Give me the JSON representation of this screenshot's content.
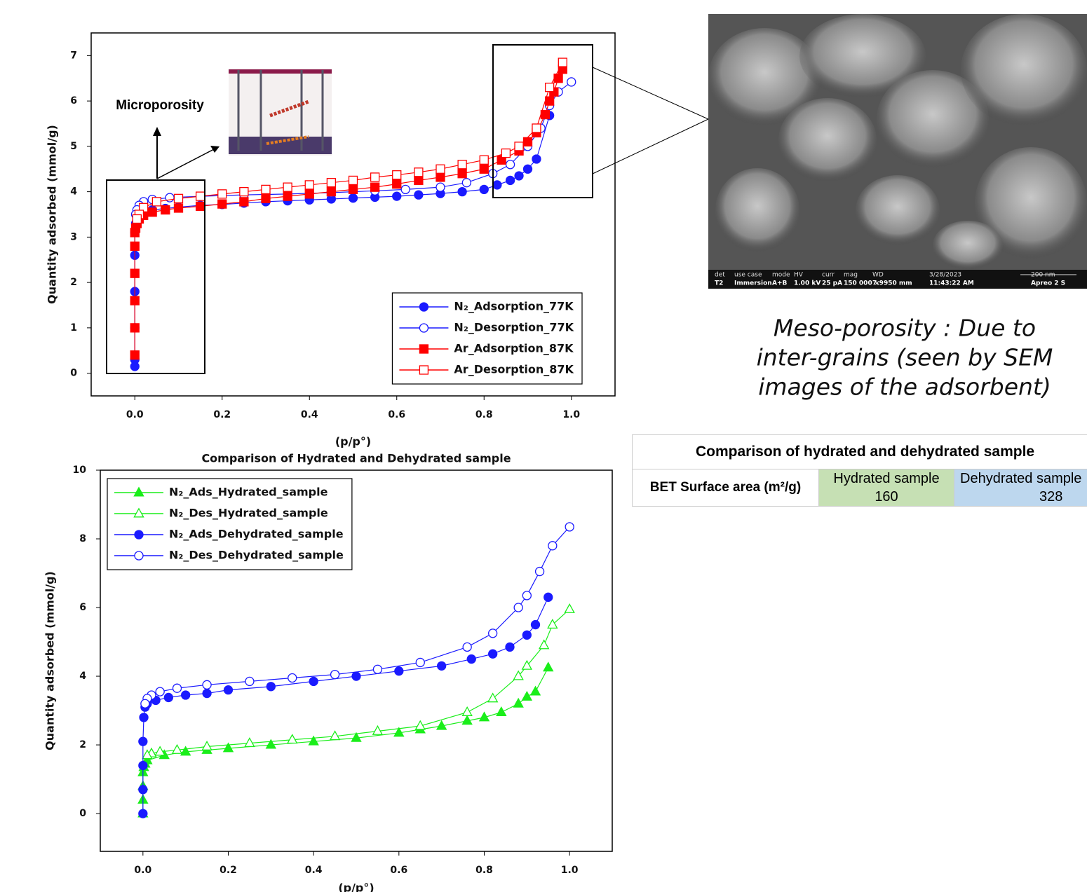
{
  "chart_data": [
    {
      "type": "line",
      "annotation": "Microporosity",
      "xlabel": "(p/p°)",
      "ylabel": "Quantity adsorbed (mmol/g)",
      "xlim": [
        -0.1,
        1.1
      ],
      "ylim": [
        -0.5,
        7.5
      ],
      "xticks": [
        {
          "value": 0,
          "label": "0.0"
        },
        0.2,
        0.4,
        0.6,
        0.8,
        {
          "value": 1,
          "label": "1.0"
        }
      ],
      "yticks": [
        0,
        1,
        2,
        3,
        4,
        5,
        6,
        7
      ],
      "legend": "lower right",
      "series": [
        {
          "name": "N₂_Adsorption_77K",
          "color": "#1a1aff",
          "marker": "circle",
          "filled": true,
          "x": [
            0,
            0,
            0,
            0,
            0,
            0,
            0.002,
            0.005,
            0.01,
            0.02,
            0.04,
            0.07,
            0.1,
            0.15,
            0.2,
            0.25,
            0.3,
            0.35,
            0.4,
            0.45,
            0.5,
            0.55,
            0.6,
            0.65,
            0.7,
            0.75,
            0.8,
            0.83,
            0.86,
            0.88,
            0.9,
            0.92,
            0.95
          ],
          "values": [
            0.15,
            0.3,
            1,
            1.8,
            2.6,
            3.1,
            3.3,
            3.4,
            3.5,
            3.55,
            3.6,
            3.63,
            3.66,
            3.7,
            3.72,
            3.75,
            3.78,
            3.8,
            3.82,
            3.84,
            3.86,
            3.88,
            3.9,
            3.93,
            3.96,
            4.0,
            4.05,
            4.15,
            4.25,
            4.35,
            4.5,
            4.72,
            5.68
          ]
        },
        {
          "name": "N₂_Desorption_77K",
          "color": "#1a1aff",
          "marker": "circle",
          "filled": false,
          "x": [
            1.0,
            0.97,
            0.95,
            0.93,
            0.9,
            0.86,
            0.82,
            0.76,
            0.7,
            0.62,
            0.55,
            0.45,
            0.35,
            0.25,
            0.15,
            0.08,
            0.04,
            0.02,
            0.01,
            0.005,
            0.002
          ],
          "values": [
            6.42,
            6.2,
            5.9,
            5.4,
            5.0,
            4.6,
            4.4,
            4.2,
            4.1,
            4.05,
            4.02,
            3.98,
            3.95,
            3.93,
            3.9,
            3.87,
            3.83,
            3.78,
            3.7,
            3.6,
            3.5
          ]
        },
        {
          "name": "Ar_Adsorption_87K",
          "color": "#ff0000",
          "marker": "square",
          "filled": true,
          "x": [
            0,
            0,
            0,
            0,
            0,
            0,
            0.002,
            0.005,
            0.01,
            0.02,
            0.04,
            0.07,
            0.1,
            0.15,
            0.2,
            0.25,
            0.3,
            0.35,
            0.4,
            0.45,
            0.5,
            0.55,
            0.6,
            0.65,
            0.7,
            0.75,
            0.8,
            0.84,
            0.88,
            0.9,
            0.92,
            0.94,
            0.95,
            0.96,
            0.97,
            0.98
          ],
          "values": [
            0.4,
            1,
            1.6,
            2.2,
            2.8,
            3.1,
            3.2,
            3.3,
            3.4,
            3.48,
            3.55,
            3.6,
            3.64,
            3.68,
            3.73,
            3.78,
            3.85,
            3.9,
            3.95,
            4.0,
            4.05,
            4.1,
            4.17,
            4.25,
            4.32,
            4.4,
            4.5,
            4.7,
            4.9,
            5.1,
            5.3,
            5.7,
            6.0,
            6.2,
            6.5,
            6.7
          ]
        },
        {
          "name": "Ar_Desorption_87K",
          "color": "#ff0000",
          "marker": "square",
          "filled": false,
          "x": [
            0.98,
            0.95,
            0.92,
            0.88,
            0.85,
            0.8,
            0.75,
            0.7,
            0.65,
            0.6,
            0.55,
            0.5,
            0.45,
            0.4,
            0.35,
            0.3,
            0.25,
            0.2,
            0.15,
            0.1,
            0.05,
            0.02,
            0.01,
            0.005
          ],
          "values": [
            6.85,
            6.3,
            5.4,
            5.0,
            4.85,
            4.7,
            4.6,
            4.5,
            4.43,
            4.37,
            4.32,
            4.25,
            4.2,
            4.15,
            4.1,
            4.05,
            4.0,
            3.95,
            3.9,
            3.85,
            3.78,
            3.65,
            3.5,
            3.4
          ]
        }
      ]
    },
    {
      "type": "line",
      "title": "Comparison of Hydrated and Dehydrated sample",
      "xlabel": "(p/p°)",
      "ylabel": "Quantity adsorbed (mmol/g)",
      "xlim": [
        -0.1,
        1.1
      ],
      "ylim": [
        -1.1,
        10
      ],
      "xticks": [
        {
          "value": 0,
          "label": "0.0"
        },
        0.2,
        0.4,
        0.6,
        0.8,
        {
          "value": 1,
          "label": "1.0"
        }
      ],
      "yticks": [
        0,
        2,
        4,
        6,
        8,
        10
      ],
      "legend": "upper left",
      "series": [
        {
          "name": "N₂_Ads_Hydrated_sample",
          "color": "#1aee1a",
          "marker": "triangle",
          "filled": true,
          "x": [
            0,
            0,
            0,
            0,
            0.002,
            0.005,
            0.01,
            0.05,
            0.1,
            0.15,
            0.2,
            0.3,
            0.4,
            0.5,
            0.6,
            0.65,
            0.7,
            0.76,
            0.8,
            0.84,
            0.88,
            0.9,
            0.92,
            0.95
          ],
          "values": [
            0,
            0.4,
            0.8,
            1.2,
            1.35,
            1.45,
            1.55,
            1.7,
            1.8,
            1.85,
            1.9,
            2.0,
            2.1,
            2.2,
            2.35,
            2.45,
            2.55,
            2.7,
            2.8,
            2.95,
            3.2,
            3.4,
            3.55,
            4.25
          ]
        },
        {
          "name": "N₂_Des_Hydrated_sample",
          "color": "#1aee1a",
          "marker": "triangle",
          "filled": false,
          "x": [
            1.0,
            0.96,
            0.94,
            0.9,
            0.88,
            0.82,
            0.76,
            0.65,
            0.55,
            0.45,
            0.35,
            0.25,
            0.15,
            0.08,
            0.04,
            0.02,
            0.01
          ],
          "values": [
            5.95,
            5.5,
            4.9,
            4.3,
            4.0,
            3.35,
            2.95,
            2.55,
            2.4,
            2.25,
            2.15,
            2.05,
            1.95,
            1.85,
            1.8,
            1.75,
            1.7
          ]
        },
        {
          "name": "N₂_Ads_Dehydrated_sample",
          "color": "#1a1aff",
          "marker": "circle",
          "filled": true,
          "x": [
            0,
            0,
            0,
            0,
            0.002,
            0.005,
            0.01,
            0.03,
            0.06,
            0.1,
            0.15,
            0.2,
            0.3,
            0.4,
            0.5,
            0.6,
            0.7,
            0.77,
            0.82,
            0.86,
            0.9,
            0.92,
            0.95
          ],
          "values": [
            0,
            0.7,
            1.4,
            2.1,
            2.8,
            3.1,
            3.2,
            3.3,
            3.38,
            3.45,
            3.5,
            3.6,
            3.7,
            3.85,
            4.0,
            4.15,
            4.3,
            4.5,
            4.65,
            4.85,
            5.2,
            5.5,
            6.3
          ]
        },
        {
          "name": "N₂_Des_Dehydrated_sample",
          "color": "#1a1aff",
          "marker": "circle",
          "filled": false,
          "x": [
            1.0,
            0.96,
            0.93,
            0.9,
            0.88,
            0.82,
            0.76,
            0.65,
            0.55,
            0.45,
            0.35,
            0.25,
            0.15,
            0.08,
            0.04,
            0.02,
            0.01,
            0.005
          ],
          "values": [
            8.35,
            7.8,
            7.05,
            6.35,
            6.0,
            5.25,
            4.85,
            4.4,
            4.2,
            4.05,
            3.95,
            3.85,
            3.75,
            3.65,
            3.55,
            3.45,
            3.35,
            3.2
          ]
        }
      ]
    }
  ],
  "sem_image": {
    "info_bar": [
      {
        "top": "det",
        "bottom": "T2"
      },
      {
        "top": "use case",
        "bottom": "Immersion"
      },
      {
        "top": "mode",
        "bottom": "A+B"
      },
      {
        "top": "HV",
        "bottom": "1.00 kV"
      },
      {
        "top": "curr",
        "bottom": "25 pA"
      },
      {
        "top": "mag",
        "bottom": "150 000 ×"
      },
      {
        "top": "WD",
        "bottom": "7.9950 mm"
      },
      {
        "top": "3/28/2023",
        "bottom": "11:43:22 AM"
      },
      {
        "top": "200 nm",
        "bottom": "Apreo 2 S"
      }
    ]
  },
  "caption": [
    "Meso-porosity : Due to",
    "inter-grains (seen by SEM",
    "images of the adsorbent)"
  ],
  "table": {
    "title": "Comparison of hydrated and dehydrated sample",
    "row_header": "BET Surface area (m²/g)",
    "columns": [
      {
        "name": "Hydrated sample",
        "value": 160,
        "color": "#c6e0b4"
      },
      {
        "name": "Dehydrated sample",
        "value": 328,
        "color": "#bdd7ee"
      }
    ]
  }
}
